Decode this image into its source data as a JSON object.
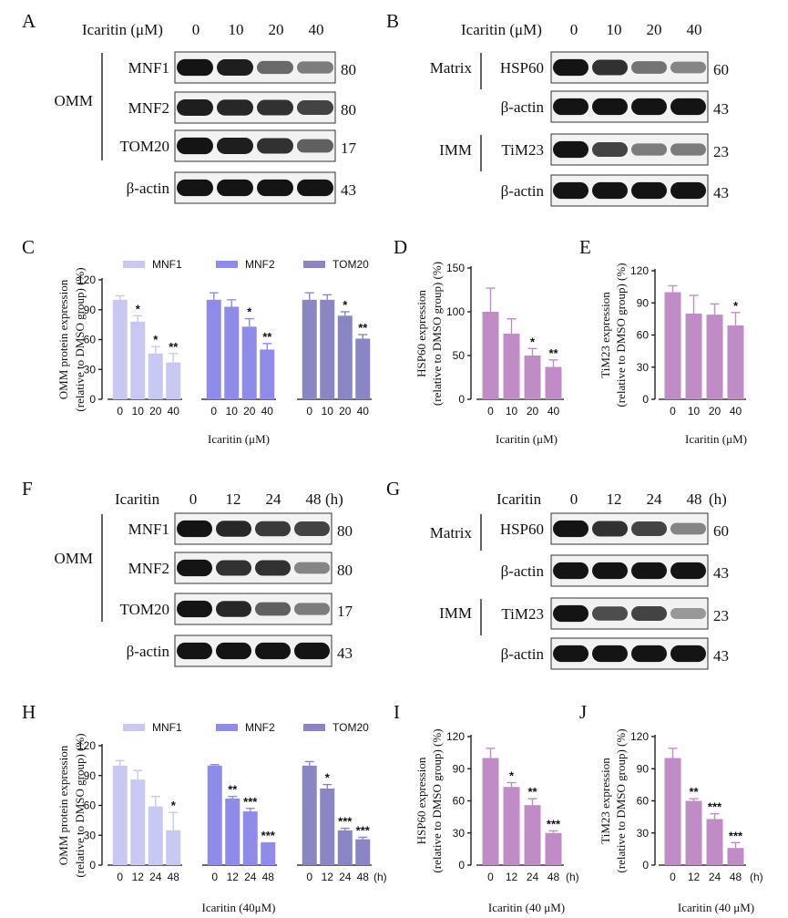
{
  "colors": {
    "mnf1": "#c8c8f2",
    "mnf2": "#8f8be8",
    "tom20": "#8a86c4",
    "mito": "#c08cc6",
    "band": "#141414"
  },
  "panel_letters": [
    "A",
    "B",
    "C",
    "D",
    "E",
    "F",
    "G",
    "H",
    "I",
    "J"
  ],
  "blots": {
    "A": {
      "treatment_label": "Icaritin (μM)",
      "lanes": [
        "0",
        "10",
        "20",
        "40"
      ],
      "unit": "",
      "group_label": "OMM",
      "rows": [
        {
          "label": "MNF1",
          "mw": "80",
          "intensity": [
            1.0,
            0.95,
            0.55,
            0.45
          ]
        },
        {
          "label": "MNF2",
          "mw": "80",
          "intensity": [
            0.95,
            0.9,
            0.85,
            0.75
          ]
        },
        {
          "label": "TOM20",
          "mw": "17",
          "intensity": [
            1.0,
            0.95,
            0.85,
            0.6
          ]
        },
        {
          "label": "β-actin",
          "mw": "43",
          "intensity": [
            1.0,
            1.0,
            1.0,
            1.0
          ]
        }
      ]
    },
    "B": {
      "treatment_label": "Icaritin (μM)",
      "lanes": [
        "0",
        "10",
        "20",
        "40"
      ],
      "unit": "",
      "groups": [
        "Matrix",
        "IMM"
      ],
      "rows": [
        {
          "label": "HSP60",
          "mw": "60",
          "intensity": [
            1.0,
            0.85,
            0.5,
            0.4
          ]
        },
        {
          "label": "β-actin",
          "mw": "43",
          "intensity": [
            1.0,
            1.0,
            1.0,
            1.0
          ]
        },
        {
          "label": "TiM23",
          "mw": "23",
          "intensity": [
            1.0,
            0.75,
            0.45,
            0.45
          ]
        },
        {
          "label": "β-actin",
          "mw": "43",
          "intensity": [
            1.0,
            1.0,
            1.0,
            1.0
          ]
        }
      ]
    },
    "F": {
      "treatment_label": "Icaritin",
      "lanes": [
        "0",
        "12",
        "24",
        "48"
      ],
      "unit": "(h)",
      "group_label": "OMM",
      "rows": [
        {
          "label": "MNF1",
          "mw": "80",
          "intensity": [
            1.0,
            0.9,
            0.8,
            0.75
          ]
        },
        {
          "label": "MNF2",
          "mw": "80",
          "intensity": [
            1.0,
            0.85,
            0.85,
            0.4
          ]
        },
        {
          "label": "TOM20",
          "mw": "17",
          "intensity": [
            1.0,
            0.9,
            0.6,
            0.45
          ]
        },
        {
          "label": "β-actin",
          "mw": "43",
          "intensity": [
            1.0,
            1.0,
            1.0,
            1.0
          ]
        }
      ]
    },
    "G": {
      "treatment_label": "Icaritin",
      "lanes": [
        "0",
        "12",
        "24",
        "48"
      ],
      "unit": "(h)",
      "groups": [
        "Matrix",
        "IMM"
      ],
      "rows": [
        {
          "label": "HSP60",
          "mw": "60",
          "intensity": [
            1.0,
            0.85,
            0.75,
            0.4
          ]
        },
        {
          "label": "β-actin",
          "mw": "43",
          "intensity": [
            1.0,
            1.0,
            1.0,
            1.0
          ]
        },
        {
          "label": "TiM23",
          "mw": "23",
          "intensity": [
            1.0,
            0.7,
            0.75,
            0.3
          ]
        },
        {
          "label": "β-actin",
          "mw": "43",
          "intensity": [
            1.0,
            1.0,
            1.0,
            1.0
          ]
        }
      ]
    }
  },
  "chart_data": [
    {
      "id": "C",
      "type": "bar",
      "title": "",
      "ylabel_line1": "OMM protein expression",
      "ylabel_line2": "(relative to DMSO group) (%)",
      "xlabel": "Icaritin (μM)",
      "yticks": [
        0,
        30,
        60,
        90,
        120
      ],
      "ylim": [
        0,
        120
      ],
      "categories": [
        "0",
        "10",
        "20",
        "40"
      ],
      "unit_label": "",
      "series": [
        {
          "name": "MNF1",
          "color_key": "mnf1",
          "values": [
            100,
            78,
            46,
            37
          ],
          "errors": [
            4,
            6,
            7,
            9
          ],
          "sig": [
            "",
            "*",
            "*",
            "**"
          ]
        },
        {
          "name": "MNF2",
          "color_key": "mnf2",
          "values": [
            100,
            93,
            73,
            50
          ],
          "errors": [
            7,
            7,
            8,
            6
          ],
          "sig": [
            "",
            "",
            "*",
            "**"
          ]
        },
        {
          "name": "TOM20",
          "color_key": "tom20",
          "values": [
            100,
            100,
            84,
            61
          ],
          "errors": [
            7,
            5,
            4,
            4
          ],
          "sig": [
            "",
            "",
            "*",
            "**"
          ]
        }
      ]
    },
    {
      "id": "D",
      "type": "bar",
      "ylabel_line1": "HSP60 expression",
      "ylabel_line2": "(relative to DMSO group) (%)",
      "xlabel": "Icaritin (μM)",
      "yticks": [
        0,
        50,
        100,
        150
      ],
      "ylim": [
        0,
        150
      ],
      "categories": [
        "0",
        "10",
        "20",
        "40"
      ],
      "unit_label": "",
      "series": [
        {
          "name": "HSP60",
          "color_key": "mito",
          "values": [
            100,
            75,
            50,
            37
          ],
          "errors": [
            27,
            17,
            8,
            8
          ],
          "sig": [
            "",
            "",
            "*",
            "**"
          ]
        }
      ]
    },
    {
      "id": "E",
      "type": "bar",
      "ylabel_line1": "TiM23 expression",
      "ylabel_line2": "(relative to DMSO group) (%)",
      "xlabel": "Icaritin (μM)",
      "yticks": [
        0,
        30,
        60,
        90,
        120
      ],
      "ylim": [
        0,
        120
      ],
      "categories": [
        "0",
        "10",
        "20",
        "40"
      ],
      "unit_label": "",
      "series": [
        {
          "name": "TiM23",
          "color_key": "mito",
          "values": [
            100,
            80,
            79,
            69
          ],
          "errors": [
            6,
            17,
            10,
            12
          ],
          "sig": [
            "",
            "",
            "",
            "*"
          ]
        }
      ]
    },
    {
      "id": "H",
      "type": "bar",
      "ylabel_line1": "OMM protein expression",
      "ylabel_line2": "(relative to DMSO group) (%)",
      "xlabel": "Icaritin (40μM)",
      "yticks": [
        0,
        30,
        60,
        90,
        120
      ],
      "ylim": [
        0,
        120
      ],
      "categories": [
        "0",
        "12",
        "24",
        "48"
      ],
      "unit_label": "(h)",
      "series": [
        {
          "name": "MNF1",
          "color_key": "mnf1",
          "values": [
            100,
            86,
            59,
            35
          ],
          "errors": [
            5,
            9,
            10,
            18
          ],
          "sig": [
            "",
            "",
            "",
            "*"
          ]
        },
        {
          "name": "MNF2",
          "color_key": "mnf2",
          "values": [
            100,
            67,
            54,
            23
          ],
          "errors": [
            1,
            2,
            3,
            0
          ],
          "sig": [
            "",
            "**",
            "***",
            "***"
          ]
        },
        {
          "name": "TOM20",
          "color_key": "tom20",
          "values": [
            100,
            77,
            35,
            26
          ],
          "errors": [
            4,
            4,
            2,
            2
          ],
          "sig": [
            "",
            "*",
            "***",
            "***"
          ]
        }
      ]
    },
    {
      "id": "I",
      "type": "bar",
      "ylabel_line1": "HSP60 expression",
      "ylabel_line2": "(relative to DMSO group) (%)",
      "xlabel": "Icaritin (40 μM)",
      "yticks": [
        0,
        30,
        60,
        90,
        120
      ],
      "ylim": [
        0,
        120
      ],
      "categories": [
        "0",
        "12",
        "24",
        "48"
      ],
      "unit_label": "(h)",
      "series": [
        {
          "name": "HSP60",
          "color_key": "mito",
          "values": [
            100,
            73,
            56,
            30
          ],
          "errors": [
            9,
            4,
            6,
            2
          ],
          "sig": [
            "",
            "*",
            "**",
            "***"
          ]
        }
      ]
    },
    {
      "id": "J",
      "type": "bar",
      "ylabel_line1": "TiM23 expression",
      "ylabel_line2": "(relative to DMSO group) (%)",
      "xlabel": "Icaritin (40 μM)",
      "yticks": [
        0,
        30,
        60,
        90,
        120
      ],
      "ylim": [
        0,
        120
      ],
      "categories": [
        "0",
        "12",
        "24",
        "48"
      ],
      "unit_label": "(h)",
      "series": [
        {
          "name": "TiM23",
          "color_key": "mito",
          "values": [
            100,
            60,
            43,
            16
          ],
          "errors": [
            9,
            2,
            5,
            5
          ],
          "sig": [
            "",
            "**",
            "***",
            "***"
          ]
        }
      ]
    }
  ]
}
